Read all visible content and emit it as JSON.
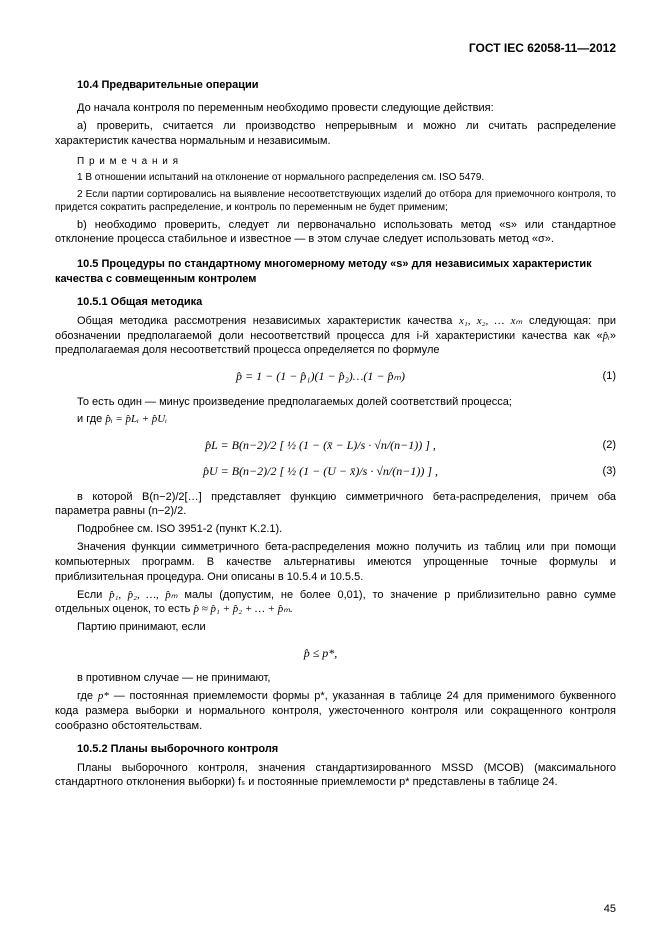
{
  "header": "ГОСТ IEC 62058-11—2012",
  "s10_4": {
    "title": "10.4 Предварительные операции",
    "p1": "До начала контроля по переменным необходимо провести следующие действия:",
    "p2": "а) проверить, считается ли производство непрерывным и можно ли считать распределение характеристик качества нормальным и независимым.",
    "notes_label": "П р и м е ч а н и я",
    "note1": "1 В отношении испытаний на отклонение от нормального распределения см. ISO 5479.",
    "note2": "2 Если партии сортировались на выявление несоответствующих изделий до отбора для приемочного контроля, то придется сократить распределение, и контроль по переменным не будет применим;",
    "p3": "b) необходимо проверить, следует ли первоначально использовать метод «s» или стандартное отклонение процесса стабильное и известное — в этом случае следует использовать метод «σ»."
  },
  "s10_5": {
    "title": "10.5 Процедуры по стандартному многомерному методу «s» для независимых характеристик качества с совмещенным контролем"
  },
  "s10_5_1": {
    "title": "10.5.1 Общая методика",
    "p1_a": "Общая методика рассмотрения независимых характеристик качества ",
    "p1_vars": "x₁, x₂, … xₘ",
    "p1_b": " следующая: при обозначении предполагаемой доли несоответствий процесса для i-й характеристики качества как «",
    "p1_phat": "p̂ᵢ",
    "p1_c": "» предполагаемая доля несоответствий процесса определяется по формуле",
    "eq1": "p̂ = 1 − (1 − p̂₁)(1 − p̂₂)…(1 − p̂ₘ)",
    "eq1_num": "(1)",
    "p2": "То есть один — минус произведение предполагаемых долей соответствий процесса;",
    "p3_a": "и где ",
    "p3_math": "p̂ᵢ = p̂Lᵢ + p̂Uᵢ",
    "eq2": "p̂L = B(n−2)/2 [ ½ (1 − (x̄ − L)/s · √n/(n−1)) ] ,",
    "eq2_num": "(2)",
    "eq3": "p̂U = B(n−2)/2 [ ½ (1 − (U − x̄)/s · √n/(n−1)) ] ,",
    "eq3_num": "(3)",
    "p4": "в которой B(n−2)/2[…] представляет функцию симметричного бета-распределения, причем оба параметра равны (n−2)/2.",
    "p5": "Подробнее см. ISO 3951-2 (пункт K.2.1).",
    "p6": "Значения функции симметричного бета-распределения можно получить из таблиц или при помощи компьютерных программ. В качестве альтернативы имеются упрощенные точные формулы и приблизительная процедура. Они описаны в 10.5.4 и 10.5.5.",
    "p7_a": "Если ",
    "p7_vars": "p̂₁, p̂₂, …, p̂ₘ",
    "p7_b": " малы (допустим, не более 0,01), то значение p приблизительно равно сумме отдельных оценок, то есть ",
    "p7_sum": "p̂ ≈ p̂₁ + p̂₂ + … + p̂ₘ.",
    "p8": "Партию принимают, если",
    "eq4": "p̂ ≤ p*,",
    "p9": "в противном случае — не принимают,",
    "p10_a": "где ",
    "p10_var": "p*",
    "p10_b": " — постоянная приемлемости формы p*, указанная в таблице 24 для применимого буквенного кода размера выборки и нормального контроля, ужесточенного контроля или сокращенного контроля сообразно обстоятельствам."
  },
  "s10_5_2": {
    "title": "10.5.2 Планы выборочного контроля",
    "p1": "Планы выборочного контроля, значения стандартизированного MSSD (МСОВ) (максимального стандартного отклонения выборки) fₛ и постоянные приемлемости p* представлены в таблице 24."
  },
  "page_number": "45"
}
